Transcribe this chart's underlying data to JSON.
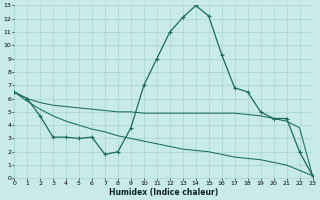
{
  "xlabel": "Humidex (Indice chaleur)",
  "bg_color": "#c8ebe8",
  "grid_color": "#a8d4d0",
  "line_color": "#1a6b5a",
  "xlim": [
    0,
    23
  ],
  "ylim": [
    0,
    13
  ],
  "xtick_labels": [
    "0",
    "1",
    "2",
    "3",
    "4",
    "5",
    "6",
    "7",
    "8",
    "9",
    "10",
    "11",
    "12",
    "13",
    "14",
    "15",
    "16",
    "17",
    "18",
    "19",
    "20",
    "21",
    "22",
    "23"
  ],
  "ytick_labels": [
    "0",
    "1",
    "2",
    "3",
    "4",
    "5",
    "6",
    "7",
    "8",
    "9",
    "10",
    "11",
    "12",
    "13"
  ],
  "main_x": [
    0,
    1,
    2,
    3,
    4,
    5,
    6,
    7,
    8,
    9,
    10,
    11,
    12,
    13,
    14,
    15,
    16,
    17,
    18,
    19,
    20,
    21,
    22,
    23
  ],
  "main_y": [
    6.5,
    6.0,
    4.7,
    3.1,
    3.1,
    3.0,
    3.1,
    1.8,
    2.0,
    3.8,
    7.0,
    9.0,
    11.0,
    12.1,
    13.0,
    12.2,
    9.3,
    6.8,
    6.5,
    5.0,
    4.5,
    4.5,
    2.0,
    0.2
  ],
  "upper_x": [
    0,
    1,
    2,
    3,
    4,
    5,
    6,
    7,
    8,
    9,
    10,
    11,
    12,
    13,
    14,
    15,
    16,
    17,
    18,
    19,
    20,
    21,
    22,
    23
  ],
  "upper_y": [
    6.5,
    6.0,
    5.7,
    5.5,
    5.4,
    5.3,
    5.2,
    5.1,
    5.0,
    5.0,
    4.9,
    4.9,
    4.9,
    4.9,
    4.9,
    4.9,
    4.9,
    4.9,
    4.8,
    4.7,
    4.5,
    4.3,
    3.8,
    0.2
  ],
  "lower_x": [
    0,
    1,
    2,
    3,
    4,
    5,
    6,
    7,
    8,
    9,
    10,
    11,
    12,
    13,
    14,
    15,
    16,
    17,
    18,
    19,
    20,
    21,
    22,
    23
  ],
  "lower_y": [
    6.5,
    5.8,
    5.2,
    4.7,
    4.3,
    4.0,
    3.7,
    3.5,
    3.2,
    3.0,
    2.8,
    2.6,
    2.4,
    2.2,
    2.1,
    2.0,
    1.8,
    1.6,
    1.5,
    1.4,
    1.2,
    1.0,
    0.6,
    0.2
  ]
}
